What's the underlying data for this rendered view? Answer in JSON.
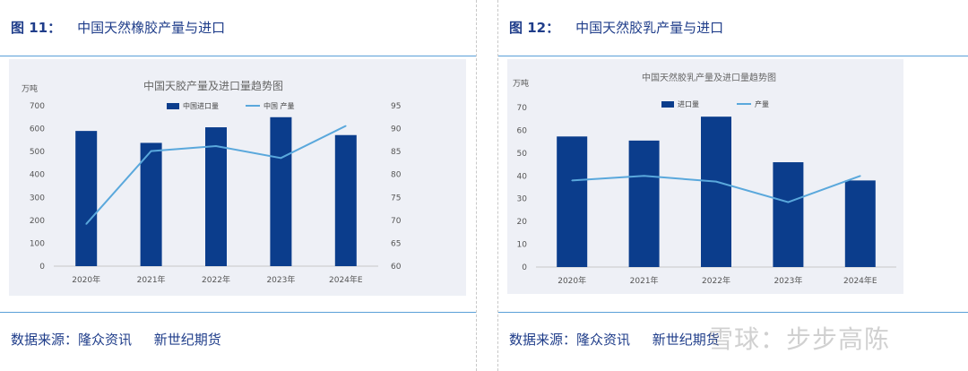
{
  "left": {
    "fig_no": "图 11：",
    "fig_title": "中国天然橡胶产量与进口",
    "source_label": "数据来源：隆众资讯",
    "source_org": "新世纪期货"
  },
  "right": {
    "fig_no": "图 12：",
    "fig_title": "中国天然胶乳产量与进口",
    "source_label": "数据来源：隆众资讯",
    "source_org": "新世纪期货"
  },
  "watermark": "雪球：步步高陈",
  "colors": {
    "bar": "#0b3d8c",
    "line": "#5aa8dc",
    "accent": "#1f3d8a",
    "chart_bg": "#eef0f6"
  },
  "chart_data": [
    {
      "type": "bar",
      "title": "中国天胶产量及进口量趋势图",
      "unit_label": "万吨",
      "categories": [
        "2020年",
        "2021年",
        "2022年",
        "2023年",
        "2024年E"
      ],
      "series": [
        {
          "name": "中国进口量",
          "type": "bar",
          "axis": "left",
          "values": [
            590,
            538,
            606,
            650,
            572
          ]
        },
        {
          "name": "中国 产量",
          "type": "line",
          "axis": "right",
          "values": [
            69.2,
            85.1,
            86.2,
            83.6,
            90.6
          ]
        }
      ],
      "ylim": [
        0,
        700
      ],
      "y_ticks": [
        "0",
        "100",
        "200",
        "300",
        "400",
        "500",
        "600",
        "700"
      ],
      "y2lim": [
        60,
        95
      ],
      "y2_ticks": [
        "60",
        "65",
        "70",
        "75",
        "80",
        "85",
        "90",
        "95"
      ],
      "legend": "top-center",
      "grid": false
    },
    {
      "type": "bar",
      "title": "中国天然胶乳产量及进口量趋势图",
      "unit_label": "万吨",
      "categories": [
        "2020年",
        "2021年",
        "2022年",
        "2023年",
        "2024年E"
      ],
      "series": [
        {
          "name": "进口量",
          "type": "bar",
          "values": [
            57.3,
            55.5,
            66,
            46,
            38
          ]
        },
        {
          "name": "产量",
          "type": "line",
          "values": [
            38,
            40,
            37.5,
            28.5,
            40
          ]
        }
      ],
      "ylim": [
        0,
        70
      ],
      "y_ticks": [
        "0",
        "10",
        "20",
        "30",
        "40",
        "50",
        "60",
        "70"
      ],
      "legend": "top-center",
      "grid": false
    }
  ]
}
